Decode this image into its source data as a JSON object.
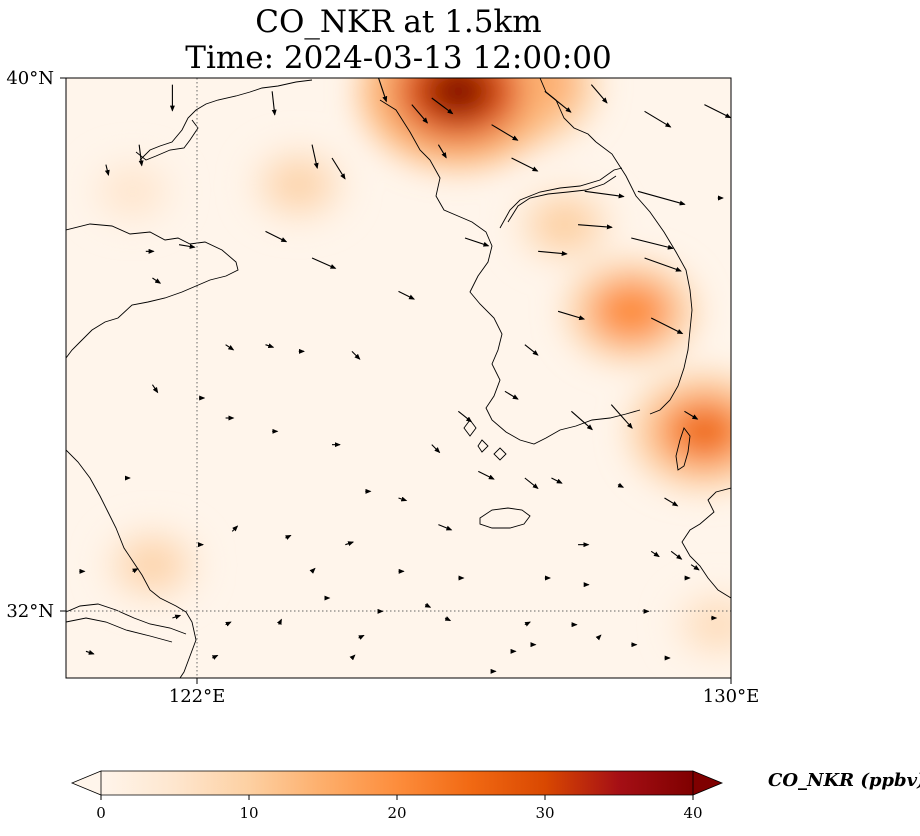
{
  "title_line1": "CO_NKR at 1.5km",
  "title_line2": "Time: 2024-03-13 12:00:00",
  "axes": {
    "lat_ticks": [
      {
        "value": 40,
        "label": "40°N"
      },
      {
        "value": 32,
        "label": "32°N"
      }
    ],
    "lon_ticks": [
      {
        "value": 122,
        "label": "122°E"
      },
      {
        "value": 130,
        "label": "130°E"
      }
    ],
    "lon_range": [
      120,
      130
    ],
    "lat_range": [
      31,
      40
    ]
  },
  "colorbar": {
    "label": "CO_NKR (ppbv)",
    "ticks": [
      {
        "value": 0,
        "label": "0"
      },
      {
        "value": 10,
        "label": "10"
      },
      {
        "value": 20,
        "label": "20"
      },
      {
        "value": 30,
        "label": "30"
      },
      {
        "value": 40,
        "label": "40"
      }
    ],
    "range": [
      0,
      40
    ],
    "colors": [
      "#fff5eb",
      "#fee6ce",
      "#fdd0a2",
      "#fdae6b",
      "#fd8d3c",
      "#f16913",
      "#d94801",
      "#a50f15",
      "#7f0000"
    ]
  },
  "chart_data": {
    "type": "heatmap",
    "variable": "CO_NKR",
    "units": "ppbv",
    "plumes": [
      {
        "lon": 125.9,
        "lat": 39.8,
        "value": 40
      },
      {
        "lon": 126.8,
        "lat": 39.9,
        "value": 28
      },
      {
        "lon": 128.5,
        "lat": 36.5,
        "value": 20
      },
      {
        "lon": 129.6,
        "lat": 34.7,
        "value": 26
      },
      {
        "lon": 123.5,
        "lat": 38.4,
        "value": 9
      },
      {
        "lon": 127.5,
        "lat": 37.8,
        "value": 10
      },
      {
        "lon": 121.3,
        "lat": 32.7,
        "value": 9
      },
      {
        "lon": 129.8,
        "lat": 31.8,
        "value": 7
      },
      {
        "lon": 121.0,
        "lat": 38.3,
        "value": 5
      }
    ],
    "wind_vectors": [
      {
        "lon": 121.6,
        "lat": 39.9,
        "u": 0.0,
        "v": -1.0
      },
      {
        "lon": 121.1,
        "lat": 39.0,
        "u": 0.1,
        "v": -0.8
      },
      {
        "lon": 120.6,
        "lat": 38.7,
        "u": 0.1,
        "v": -0.4
      },
      {
        "lon": 123.1,
        "lat": 39.8,
        "u": 0.1,
        "v": -0.9
      },
      {
        "lon": 123.7,
        "lat": 39.0,
        "u": 0.2,
        "v": -0.9
      },
      {
        "lon": 124.0,
        "lat": 38.8,
        "u": 0.5,
        "v": -0.8
      },
      {
        "lon": 124.7,
        "lat": 40.0,
        "u": 0.3,
        "v": -0.9
      },
      {
        "lon": 125.2,
        "lat": 39.6,
        "u": 0.6,
        "v": -0.7
      },
      {
        "lon": 125.5,
        "lat": 39.7,
        "u": 0.8,
        "v": -0.6
      },
      {
        "lon": 126.4,
        "lat": 39.3,
        "u": 1.0,
        "v": -0.6
      },
      {
        "lon": 127.2,
        "lat": 39.8,
        "u": 1.0,
        "v": -0.8
      },
      {
        "lon": 127.9,
        "lat": 39.9,
        "u": 0.6,
        "v": -0.7
      },
      {
        "lon": 128.7,
        "lat": 39.5,
        "u": 1.0,
        "v": -0.6
      },
      {
        "lon": 129.6,
        "lat": 39.6,
        "u": 1.0,
        "v": -0.5
      },
      {
        "lon": 125.6,
        "lat": 39.0,
        "u": 0.3,
        "v": -0.5
      },
      {
        "lon": 126.7,
        "lat": 38.8,
        "u": 1.0,
        "v": -0.5
      },
      {
        "lon": 127.8,
        "lat": 38.3,
        "u": 1.5,
        "v": -0.2
      },
      {
        "lon": 128.6,
        "lat": 38.3,
        "u": 1.8,
        "v": -0.5
      },
      {
        "lon": 129.8,
        "lat": 38.2,
        "u": 0.2,
        "v": 0.0
      },
      {
        "lon": 121.7,
        "lat": 37.5,
        "u": 0.6,
        "v": -0.1
      },
      {
        "lon": 123.0,
        "lat": 37.7,
        "u": 0.8,
        "v": -0.4
      },
      {
        "lon": 123.7,
        "lat": 37.3,
        "u": 0.9,
        "v": -0.4
      },
      {
        "lon": 121.2,
        "lat": 37.4,
        "u": 0.3,
        "v": 0.0
      },
      {
        "lon": 126.0,
        "lat": 37.6,
        "u": 0.9,
        "v": -0.3
      },
      {
        "lon": 127.1,
        "lat": 37.4,
        "u": 1.1,
        "v": -0.1
      },
      {
        "lon": 127.7,
        "lat": 37.8,
        "u": 1.3,
        "v": -0.1
      },
      {
        "lon": 128.5,
        "lat": 37.6,
        "u": 1.6,
        "v": -0.4
      },
      {
        "lon": 128.7,
        "lat": 37.3,
        "u": 1.4,
        "v": -0.5
      },
      {
        "lon": 121.3,
        "lat": 37.0,
        "u": 0.3,
        "v": -0.2
      },
      {
        "lon": 125.0,
        "lat": 36.8,
        "u": 0.6,
        "v": -0.3
      },
      {
        "lon": 127.4,
        "lat": 36.5,
        "u": 1.0,
        "v": -0.3
      },
      {
        "lon": 128.8,
        "lat": 36.4,
        "u": 1.2,
        "v": -0.6
      },
      {
        "lon": 126.9,
        "lat": 36.0,
        "u": 0.5,
        "v": -0.4
      },
      {
        "lon": 122.4,
        "lat": 36.0,
        "u": 0.3,
        "v": -0.2
      },
      {
        "lon": 123.0,
        "lat": 36.0,
        "u": 0.3,
        "v": -0.1
      },
      {
        "lon": 123.5,
        "lat": 35.9,
        "u": 0.2,
        "v": 0.0
      },
      {
        "lon": 124.3,
        "lat": 35.9,
        "u": 0.3,
        "v": -0.3
      },
      {
        "lon": 121.3,
        "lat": 35.4,
        "u": 0.2,
        "v": -0.3
      },
      {
        "lon": 122.0,
        "lat": 35.2,
        "u": 0.2,
        "v": 0.0
      },
      {
        "lon": 125.9,
        "lat": 35.0,
        "u": 0.5,
        "v": -0.4
      },
      {
        "lon": 126.6,
        "lat": 35.3,
        "u": 0.5,
        "v": -0.3
      },
      {
        "lon": 127.6,
        "lat": 35.0,
        "u": 0.8,
        "v": -0.7
      },
      {
        "lon": 128.2,
        "lat": 35.1,
        "u": 0.8,
        "v": -0.9
      },
      {
        "lon": 129.3,
        "lat": 35.0,
        "u": 0.5,
        "v": -0.3
      },
      {
        "lon": 122.4,
        "lat": 34.9,
        "u": 0.3,
        "v": 0.0
      },
      {
        "lon": 123.1,
        "lat": 34.7,
        "u": 0.2,
        "v": 0.0
      },
      {
        "lon": 124.0,
        "lat": 34.5,
        "u": 0.3,
        "v": 0.0
      },
      {
        "lon": 125.5,
        "lat": 34.5,
        "u": 0.3,
        "v": -0.3
      },
      {
        "lon": 126.2,
        "lat": 34.1,
        "u": 0.6,
        "v": -0.3
      },
      {
        "lon": 126.9,
        "lat": 34.0,
        "u": 0.5,
        "v": -0.4
      },
      {
        "lon": 127.3,
        "lat": 34.0,
        "u": 0.4,
        "v": -0.2
      },
      {
        "lon": 128.3,
        "lat": 33.9,
        "u": 0.2,
        "v": -0.1
      },
      {
        "lon": 129.0,
        "lat": 33.7,
        "u": 0.5,
        "v": -0.3
      },
      {
        "lon": 120.9,
        "lat": 34.0,
        "u": 0.0,
        "v": 0.0
      },
      {
        "lon": 124.5,
        "lat": 33.8,
        "u": 0.2,
        "v": 0.0
      },
      {
        "lon": 125.0,
        "lat": 33.7,
        "u": 0.3,
        "v": -0.1
      },
      {
        "lon": 125.6,
        "lat": 33.3,
        "u": 0.5,
        "v": -0.2
      },
      {
        "lon": 127.7,
        "lat": 33.0,
        "u": 0.4,
        "v": 0.0
      },
      {
        "lon": 128.8,
        "lat": 32.9,
        "u": 0.3,
        "v": -0.2
      },
      {
        "lon": 129.1,
        "lat": 32.9,
        "u": 0.4,
        "v": -0.3
      },
      {
        "lon": 129.3,
        "lat": 32.5,
        "u": 0.2,
        "v": 0.0
      },
      {
        "lon": 129.4,
        "lat": 32.7,
        "u": 0.3,
        "v": -0.2
      },
      {
        "lon": 122.0,
        "lat": 33.0,
        "u": 0.0,
        "v": 0.0
      },
      {
        "lon": 122.5,
        "lat": 33.2,
        "u": 0.2,
        "v": 0.2
      },
      {
        "lon": 123.3,
        "lat": 33.1,
        "u": 0.2,
        "v": 0.1
      },
      {
        "lon": 124.2,
        "lat": 33.0,
        "u": 0.3,
        "v": 0.1
      },
      {
        "lon": 121.0,
        "lat": 32.6,
        "u": 0.2,
        "v": 0.1
      },
      {
        "lon": 120.2,
        "lat": 32.6,
        "u": 0.2,
        "v": 0.0
      },
      {
        "lon": 123.7,
        "lat": 32.6,
        "u": 0.1,
        "v": 0.1
      },
      {
        "lon": 125.0,
        "lat": 32.6,
        "u": 0.2,
        "v": 0.0
      },
      {
        "lon": 125.9,
        "lat": 32.5,
        "u": 0.2,
        "v": 0.0
      },
      {
        "lon": 127.2,
        "lat": 32.5,
        "u": 0.2,
        "v": 0.0
      },
      {
        "lon": 127.8,
        "lat": 32.4,
        "u": 0.1,
        "v": 0.0
      },
      {
        "lon": 123.9,
        "lat": 32.2,
        "u": 0.1,
        "v": 0.0
      },
      {
        "lon": 124.7,
        "lat": 32.0,
        "u": 0.1,
        "v": 0.0
      },
      {
        "lon": 125.4,
        "lat": 32.1,
        "u": 0.2,
        "v": -0.1
      },
      {
        "lon": 125.7,
        "lat": 31.9,
        "u": 0.2,
        "v": -0.1
      },
      {
        "lon": 127.6,
        "lat": 31.8,
        "u": 0.2,
        "v": 0.0
      },
      {
        "lon": 126.9,
        "lat": 31.8,
        "u": 0.2,
        "v": 0.1
      },
      {
        "lon": 128.7,
        "lat": 32.0,
        "u": 0.1,
        "v": 0.0
      },
      {
        "lon": 129.7,
        "lat": 31.9,
        "u": 0.2,
        "v": 0.0
      },
      {
        "lon": 121.6,
        "lat": 31.9,
        "u": 0.3,
        "v": 0.1
      },
      {
        "lon": 122.4,
        "lat": 31.8,
        "u": 0.2,
        "v": 0.1
      },
      {
        "lon": 123.2,
        "lat": 31.8,
        "u": 0.1,
        "v": 0.2
      },
      {
        "lon": 124.4,
        "lat": 31.6,
        "u": 0.2,
        "v": 0.1
      },
      {
        "lon": 127.0,
        "lat": 31.5,
        "u": 0.1,
        "v": 0.0
      },
      {
        "lon": 126.7,
        "lat": 31.4,
        "u": 0.1,
        "v": 0.0
      },
      {
        "lon": 128.0,
        "lat": 31.6,
        "u": 0.1,
        "v": 0.1
      },
      {
        "lon": 128.5,
        "lat": 31.5,
        "u": 0.2,
        "v": 0.0
      },
      {
        "lon": 120.3,
        "lat": 31.4,
        "u": 0.3,
        "v": -0.1
      },
      {
        "lon": 122.2,
        "lat": 31.3,
        "u": 0.2,
        "v": 0.1
      },
      {
        "lon": 124.3,
        "lat": 31.3,
        "u": 0.1,
        "v": 0.1
      },
      {
        "lon": 126.4,
        "lat": 31.1,
        "u": 0.1,
        "v": 0.0
      },
      {
        "lon": 129.0,
        "lat": 31.3,
        "u": 0.2,
        "v": 0.0
      }
    ]
  }
}
